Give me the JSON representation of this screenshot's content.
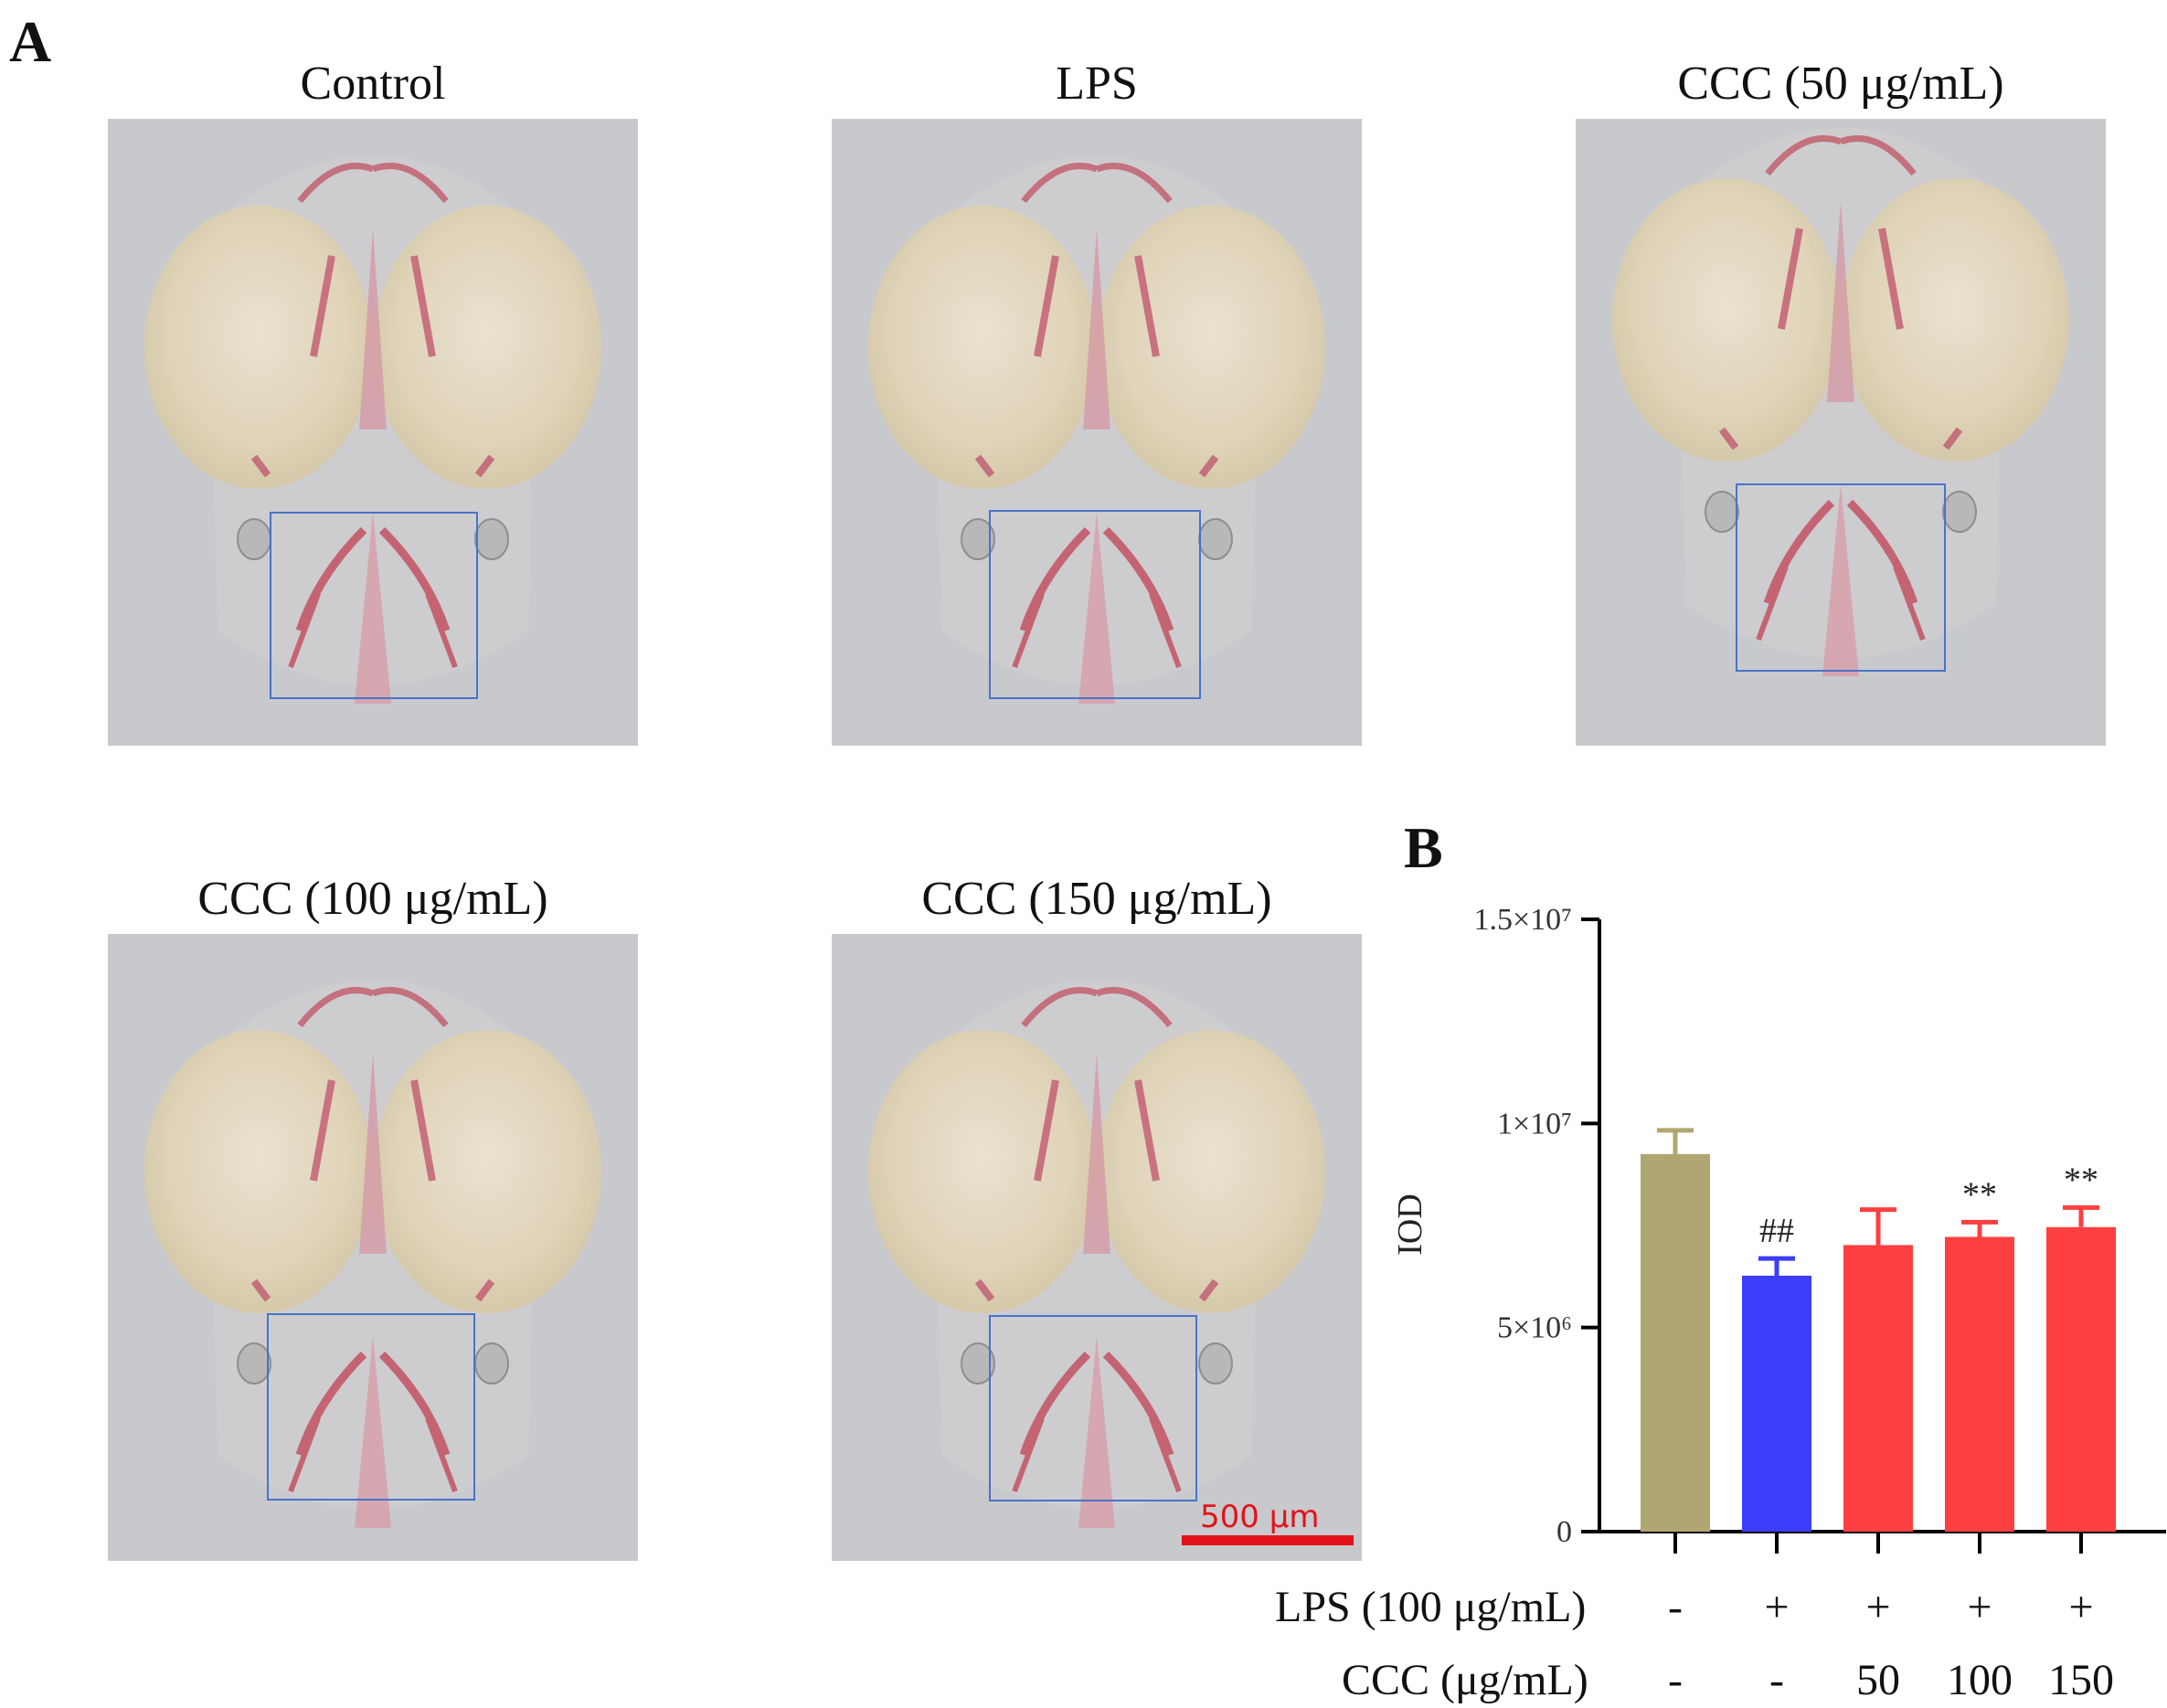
{
  "panel_a": {
    "letter": "A",
    "images": [
      {
        "title": "Control"
      },
      {
        "title": "LPS"
      },
      {
        "title": "CCC (50 μg/mL)"
      },
      {
        "title": "CCC (100 μg/mL)"
      },
      {
        "title": "CCC (150 μg/mL)"
      }
    ],
    "scale_bar": "500 μm",
    "roi_color": "#4a72c9",
    "scale_color": "#e3121b"
  },
  "panel_b": {
    "letter": "B",
    "treatment_rows": [
      {
        "label": "LPS (100 μg/mL)",
        "values": [
          "-",
          "+",
          "+",
          "+",
          "+"
        ]
      },
      {
        "label": "CCC (μg/mL)",
        "values": [
          "-",
          "-",
          "50",
          "100",
          "150"
        ]
      }
    ]
  },
  "chart_data": {
    "type": "bar",
    "ylabel": "IOD",
    "ylim": [
      0,
      15000000
    ],
    "yticks": [
      {
        "value": 0,
        "label": "0"
      },
      {
        "value": 5000000,
        "label": "5×10⁶"
      },
      {
        "value": 10000000,
        "label": "1×10⁷"
      },
      {
        "value": 15000000,
        "label": "1.5×10⁷"
      }
    ],
    "categories": [
      "Control",
      "LPS",
      "CCC 50",
      "CCC 100",
      "CCC 150"
    ],
    "values": [
      9250000,
      6270000,
      7020000,
      7220000,
      7460000
    ],
    "errors": [
      580000,
      420000,
      870000,
      360000,
      480000
    ],
    "colors": [
      "#b0a672",
      "#3d3dfa",
      "#fd3f41",
      "#fd3f41",
      "#fd3f41"
    ],
    "annotations": [
      "",
      "##",
      "",
      "**",
      "**"
    ]
  }
}
